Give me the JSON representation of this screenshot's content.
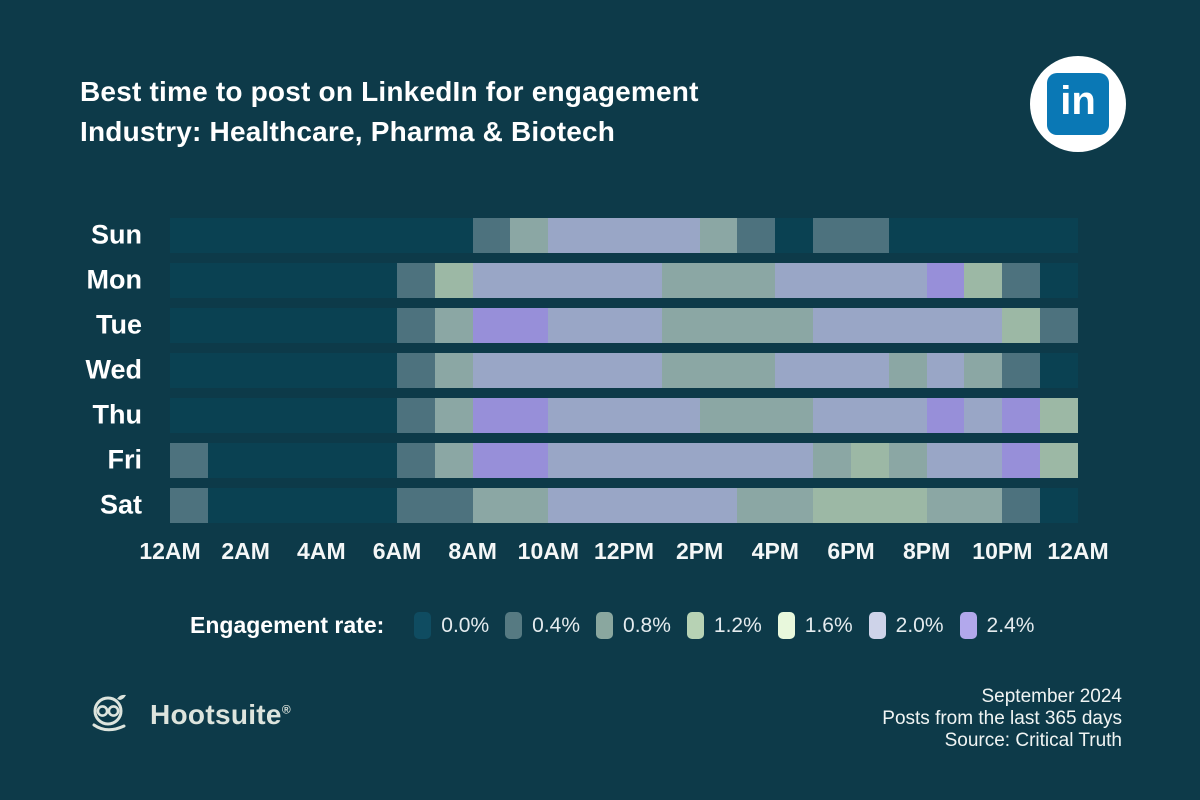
{
  "header": {
    "title_line1": "Best time to post on LinkedIn for engagement",
    "title_line2": "Industry: Healthcare, Pharma & Biotech"
  },
  "linkedin": {
    "glyph": "in",
    "brand_blue": "#0a78b5"
  },
  "chart_data": {
    "type": "heatmap",
    "title": "Best time to post on LinkedIn for engagement",
    "subtitle": "Industry: Healthcare, Pharma & Biotech",
    "unit": "engagement rate %",
    "hours": [
      "12AM",
      "1AM",
      "2AM",
      "3AM",
      "4AM",
      "5AM",
      "6AM",
      "7AM",
      "8AM",
      "9AM",
      "10AM",
      "11AM",
      "12PM",
      "1PM",
      "2PM",
      "3PM",
      "4PM",
      "5PM",
      "6PM",
      "7PM",
      "8PM",
      "9PM",
      "10PM",
      "11PM"
    ],
    "x_tick_labels": [
      "12AM",
      "2AM",
      "4AM",
      "6AM",
      "8AM",
      "10AM",
      "12PM",
      "2PM",
      "4PM",
      "6PM",
      "8PM",
      "10PM",
      "12AM"
    ],
    "rows": [
      {
        "day": "Sun",
        "values": [
          0,
          0,
          0,
          0,
          0,
          0,
          0,
          0,
          0.4,
          0.8,
          2.0,
          2.0,
          2.0,
          2.0,
          0.8,
          0.4,
          0,
          0.4,
          0.4,
          0,
          0,
          0,
          0,
          0
        ]
      },
      {
        "day": "Mon",
        "values": [
          0,
          0,
          0,
          0,
          0,
          0,
          0.4,
          1.2,
          2.0,
          2.0,
          2.0,
          2.0,
          2.0,
          0.8,
          0.8,
          0.8,
          2.0,
          2.0,
          2.0,
          2.0,
          2.4,
          1.2,
          0.4,
          0
        ]
      },
      {
        "day": "Tue",
        "values": [
          0,
          0,
          0,
          0,
          0,
          0,
          0.4,
          0.8,
          2.4,
          2.4,
          2.0,
          2.0,
          2.0,
          0.8,
          0.8,
          0.8,
          0.8,
          2.0,
          2.0,
          2.0,
          2.0,
          2.0,
          1.2,
          0.4
        ]
      },
      {
        "day": "Wed",
        "values": [
          0,
          0,
          0,
          0,
          0,
          0,
          0.4,
          0.8,
          2.0,
          2.0,
          2.0,
          2.0,
          2.0,
          0.8,
          0.8,
          0.8,
          2.0,
          2.0,
          2.0,
          0.8,
          2.0,
          0.8,
          0.4,
          0
        ]
      },
      {
        "day": "Thu",
        "values": [
          0,
          0,
          0,
          0,
          0,
          0,
          0.4,
          0.8,
          2.4,
          2.4,
          2.0,
          2.0,
          2.0,
          2.0,
          0.8,
          0.8,
          0.8,
          2.0,
          2.0,
          2.0,
          2.4,
          2.0,
          2.4,
          1.2
        ]
      },
      {
        "day": "Fri",
        "values": [
          0.4,
          0,
          0,
          0,
          0,
          0,
          0.4,
          0.8,
          2.4,
          2.4,
          2.0,
          2.0,
          2.0,
          2.0,
          2.0,
          2.0,
          2.0,
          0.8,
          1.2,
          0.8,
          2.0,
          2.0,
          2.4,
          1.2
        ]
      },
      {
        "day": "Sat",
        "values": [
          0.4,
          0,
          0,
          0,
          0,
          0,
          0.4,
          0.4,
          0.8,
          0.8,
          2.0,
          2.0,
          2.0,
          2.0,
          2.0,
          0.8,
          0.8,
          1.2,
          1.2,
          1.2,
          0.8,
          0.8,
          0.4,
          0
        ]
      }
    ],
    "cell_colors": {
      "0": "#0a4152",
      "0.4": "#4d727e",
      "0.8": "#8ba7a4",
      "1.2": "#9cb8a5",
      "1.6": "#d9efcf",
      "2": "#99a6c6",
      "2.4": "#978fd9"
    },
    "legend": {
      "label": "Engagement rate:",
      "position": "bottom",
      "bins": [
        {
          "label": "0.0%",
          "color": "#0f4c61"
        },
        {
          "label": "0.4%",
          "color": "#567a82"
        },
        {
          "label": "0.8%",
          "color": "#8aa79f"
        },
        {
          "label": "1.2%",
          "color": "#b7d2b4"
        },
        {
          "label": "1.6%",
          "color": "#e8f8dc"
        },
        {
          "label": "2.0%",
          "color": "#ced3e9"
        },
        {
          "label": "2.4%",
          "color": "#b2a8ec"
        }
      ]
    },
    "background": "#0d3a49"
  },
  "footer": {
    "brand": "Hootsuite",
    "reg": "®",
    "date": "September 2024",
    "note": "Posts from the last 365 days",
    "source": "Source: Critical Truth"
  }
}
